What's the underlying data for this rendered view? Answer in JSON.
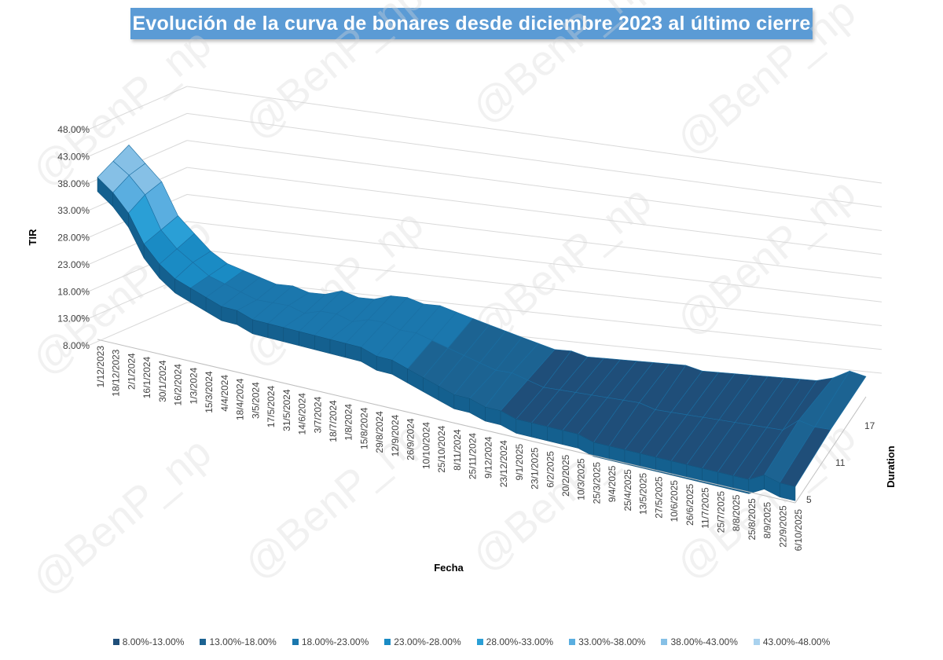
{
  "title": "Evolución de la curva de bonares desde diciembre 2023 al último cierre",
  "watermark": "@BenP_np",
  "legend": [
    {
      "label": "8.00%-13.00%",
      "color": "#1f4e79"
    },
    {
      "label": "13.00%-18.00%",
      "color": "#1c6392"
    },
    {
      "label": "18.00%-23.00%",
      "color": "#1b77ad"
    },
    {
      "label": "23.00%-28.00%",
      "color": "#1a8bc4"
    },
    {
      "label": "28.00%-33.00%",
      "color": "#2a9fd6"
    },
    {
      "label": "33.00%-38.00%",
      "color": "#5aaee0"
    },
    {
      "label": "38.00%-43.00%",
      "color": "#86c0e6"
    },
    {
      "label": "43.00%-48.00%",
      "color": "#a9d2ee"
    }
  ],
  "chart_data": {
    "type": "surface-3d",
    "title": "Evolución de la curva de bonares desde diciembre 2023 al último cierre",
    "xlabel": "Fecha",
    "ylabel": "TIR",
    "zlabel": "Duration",
    "y_ticks": [
      "8.00%",
      "13.00%",
      "18.00%",
      "23.00%",
      "28.00%",
      "33.00%",
      "38.00%",
      "43.00%",
      "48.00%"
    ],
    "ylim": [
      8,
      48
    ],
    "duration_ticks": [
      "5",
      "11",
      "17"
    ],
    "x_ticks": [
      "1/12/2023",
      "18/12/2023",
      "2/1/2024",
      "16/1/2024",
      "30/1/2024",
      "16/2/2024",
      "1/3/2024",
      "15/3/2024",
      "4/4/2024",
      "18/4/2024",
      "3/5/2024",
      "17/5/2024",
      "31/5/2024",
      "14/6/2024",
      "3/7/2024",
      "18/7/2024",
      "1/8/2024",
      "15/8/2024",
      "29/8/2024",
      "12/9/2024",
      "26/9/2024",
      "10/10/2024",
      "25/10/2024",
      "8/11/2024",
      "25/11/2024",
      "9/12/2024",
      "23/12/2024",
      "9/1/2025",
      "23/1/2025",
      "6/2/2025",
      "20/2/2025",
      "10/3/2025",
      "25/3/2025",
      "9/4/2025",
      "25/4/2025",
      "13/5/2025",
      "27/5/2025",
      "10/6/2025",
      "26/6/2025",
      "11/7/2025",
      "25/7/2025",
      "8/8/2025",
      "25/8/2025",
      "8/9/2025",
      "22/9/2025",
      "6/10/2025"
    ],
    "series": [
      {
        "name": "Duration 5",
        "values": [
          44,
          41,
          38,
          32,
          29,
          26,
          24,
          23,
          22,
          21,
          21,
          20,
          20,
          21,
          20,
          20,
          21,
          21,
          20,
          20,
          19,
          18,
          17,
          16,
          15,
          14,
          13,
          13,
          12,
          12,
          12,
          12,
          12,
          12,
          12,
          11,
          11,
          11,
          11,
          11,
          11,
          11,
          11,
          12,
          14,
          13
        ]
      },
      {
        "name": "Duration 11",
        "values": [
          41,
          39,
          36,
          30,
          27,
          25,
          23,
          22,
          21,
          20,
          20,
          20,
          19,
          20,
          20,
          19,
          20,
          20,
          19,
          19,
          18,
          17,
          16,
          15,
          14,
          14,
          13,
          12,
          12,
          12,
          12,
          12,
          12,
          12,
          11,
          11,
          11,
          11,
          11,
          11,
          11,
          11,
          11,
          14,
          13,
          13
        ]
      },
      {
        "name": "Duration 17",
        "values": [
          38,
          36,
          33,
          28,
          25,
          23,
          22,
          21,
          20,
          20,
          19,
          19,
          19,
          19,
          19,
          19,
          19,
          19,
          18,
          18,
          17,
          16,
          15,
          14,
          14,
          13,
          13,
          12,
          12,
          12,
          12,
          12,
          11,
          11,
          11,
          11,
          11,
          11,
          11,
          11,
          11,
          11,
          11,
          13,
          12,
          12
        ]
      }
    ]
  }
}
